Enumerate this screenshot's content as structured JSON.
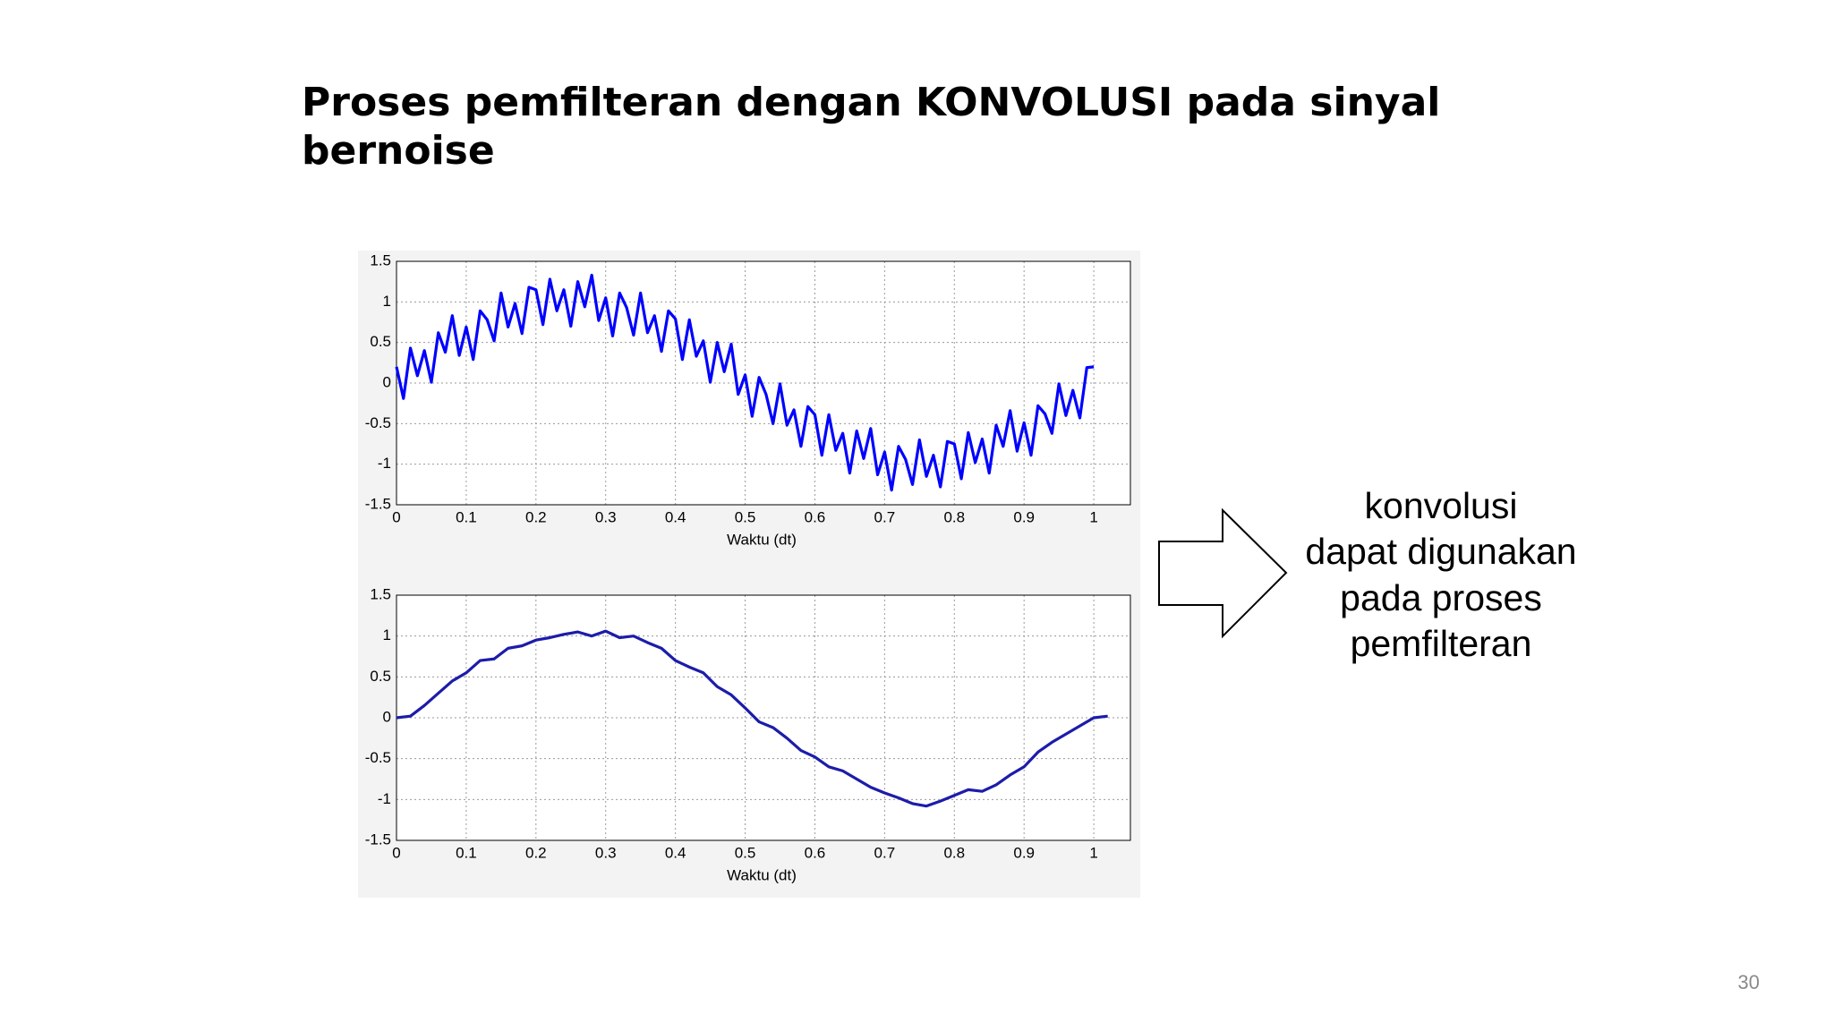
{
  "title": "Proses pemfilteran dengan KONVOLUSI pada sinyal bernoise",
  "note": [
    "konvolusi",
    "dapat digunakan",
    "pada proses",
    "pemfilteran"
  ],
  "page_number": "30",
  "chart_data": [
    {
      "type": "line",
      "xlabel": "Waktu (dt)",
      "color": "#0000ff",
      "x": [
        0,
        0.01,
        0.02,
        0.03,
        0.04,
        0.05,
        0.06,
        0.07,
        0.08,
        0.09,
        0.1,
        0.11,
        0.12,
        0.13,
        0.14,
        0.15,
        0.16,
        0.17,
        0.18,
        0.19,
        0.2,
        0.21,
        0.22,
        0.23,
        0.24,
        0.25,
        0.26,
        0.27,
        0.28,
        0.29,
        0.3,
        0.31,
        0.32,
        0.33,
        0.34,
        0.35,
        0.36,
        0.37,
        0.38,
        0.39,
        0.4,
        0.41,
        0.42,
        0.43,
        0.44,
        0.45,
        0.46,
        0.47,
        0.48,
        0.49,
        0.5,
        0.51,
        0.52,
        0.53,
        0.54,
        0.55,
        0.56,
        0.57,
        0.58,
        0.59,
        0.6,
        0.61,
        0.62,
        0.63,
        0.64,
        0.65,
        0.66,
        0.67,
        0.68,
        0.69,
        0.7,
        0.71,
        0.72,
        0.73,
        0.74,
        0.75,
        0.76,
        0.77,
        0.78,
        0.79,
        0.8,
        0.81,
        0.82,
        0.83,
        0.84,
        0.85,
        0.86,
        0.87,
        0.88,
        0.89,
        0.9,
        0.91,
        0.92,
        0.93,
        0.94,
        0.95,
        0.96,
        0.97,
        0.98,
        0.99,
        1
      ],
      "values": [
        0.2,
        -0.19,
        0.43,
        0.09,
        0.4,
        0.01,
        0.62,
        0.38,
        0.83,
        0.34,
        0.69,
        0.29,
        0.89,
        0.78,
        0.52,
        1.11,
        0.69,
        0.98,
        0.61,
        1.18,
        1.15,
        0.72,
        1.28,
        0.89,
        1.15,
        0.7,
        1.25,
        0.94,
        1.33,
        0.77,
        1.05,
        0.58,
        1.11,
        0.93,
        0.59,
        1.11,
        0.62,
        0.83,
        0.39,
        0.89,
        0.79,
        0.29,
        0.78,
        0.33,
        0.52,
        0.01,
        0.5,
        0.14,
        0.48,
        -0.14,
        0.1,
        -0.41,
        0.07,
        -0.14,
        -0.5,
        -0.01,
        -0.52,
        -0.33,
        -0.78,
        -0.29,
        -0.39,
        -0.89,
        -0.39,
        -0.83,
        -0.62,
        -1.11,
        -0.59,
        -0.93,
        -0.56,
        -1.13,
        -0.85,
        -1.32,
        -0.78,
        -0.94,
        -1.25,
        -0.7,
        -1.15,
        -0.89,
        -1.28,
        -0.72,
        -0.75,
        -1.18,
        -0.61,
        -0.98,
        -0.69,
        -1.11,
        -0.52,
        -0.78,
        -0.34,
        -0.84,
        -0.49,
        -0.89,
        -0.28,
        -0.38,
        -0.62,
        -0.01,
        -0.4,
        -0.09,
        -0.43,
        0.19,
        0.2
      ],
      "xlim": [
        0,
        1.0525
      ],
      "ylim": [
        -1.5,
        1.5
      ],
      "xticks": [
        0,
        0.1,
        0.2,
        0.3,
        0.4,
        0.5,
        0.6,
        0.7,
        0.8,
        0.9,
        1
      ],
      "yticks": [
        -1.5,
        -1,
        -0.5,
        0,
        0.5,
        1,
        1.5
      ],
      "grid": true
    },
    {
      "type": "line",
      "xlabel": "Waktu (dt)",
      "color": "#1c1caa",
      "x": [
        0,
        0.02,
        0.04,
        0.06,
        0.08,
        0.1,
        0.12,
        0.14,
        0.16,
        0.18,
        0.2,
        0.22,
        0.24,
        0.26,
        0.28,
        0.3,
        0.32,
        0.34,
        0.36,
        0.38,
        0.4,
        0.42,
        0.44,
        0.46,
        0.48,
        0.5,
        0.52,
        0.54,
        0.56,
        0.58,
        0.6,
        0.62,
        0.64,
        0.66,
        0.68,
        0.7,
        0.72,
        0.74,
        0.76,
        0.78,
        0.8,
        0.82,
        0.84,
        0.86,
        0.88,
        0.9,
        0.92,
        0.94,
        0.96,
        0.98,
        1,
        1.02
      ],
      "values": [
        0,
        0.02,
        0.15,
        0.3,
        0.45,
        0.55,
        0.7,
        0.72,
        0.85,
        0.88,
        0.95,
        0.98,
        1.02,
        1.05,
        1.0,
        1.06,
        0.98,
        1.0,
        0.92,
        0.85,
        0.7,
        0.62,
        0.55,
        0.38,
        0.28,
        0.12,
        -0.05,
        -0.12,
        -0.25,
        -0.4,
        -0.48,
        -0.6,
        -0.65,
        -0.75,
        -0.85,
        -0.92,
        -0.98,
        -1.05,
        -1.08,
        -1.02,
        -0.95,
        -0.88,
        -0.9,
        -0.82,
        -0.7,
        -0.6,
        -0.42,
        -0.3,
        -0.2,
        -0.1,
        0.0,
        0.02
      ],
      "xlim": [
        0,
        1.0525
      ],
      "ylim": [
        -1.5,
        1.5
      ],
      "xticks": [
        0,
        0.1,
        0.2,
        0.3,
        0.4,
        0.5,
        0.6,
        0.7,
        0.8,
        0.9,
        1
      ],
      "yticks": [
        -1.5,
        -1,
        -0.5,
        0,
        0.5,
        1,
        1.5
      ],
      "grid": true
    }
  ]
}
